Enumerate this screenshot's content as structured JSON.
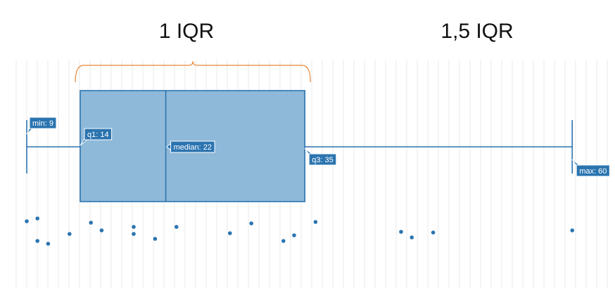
{
  "headers": {
    "iqr": "1 IQR",
    "whisker": "1,5 IQR"
  },
  "chart_data": {
    "type": "boxplot",
    "title": "",
    "xlabel": "",
    "ylabel": "",
    "grid": true,
    "stats": {
      "min": 9,
      "q1": 14,
      "median": 22,
      "q3": 35,
      "max": 60
    },
    "labels": {
      "min": "min: 9",
      "q1": "q1: 14",
      "median": "median: 22",
      "q3": "q3: 35",
      "max": "max: 60"
    },
    "points": [
      9,
      10,
      10,
      11,
      13,
      15,
      16,
      19,
      19,
      21,
      23,
      28,
      30,
      33,
      34,
      36,
      44,
      45,
      47,
      60
    ]
  },
  "colors": {
    "box_fill": "#8fb9d9",
    "box_stroke": "#2b74b0",
    "whisker": "#2b74b0",
    "point": "#2b74b0",
    "label_bg": "#2b74b0",
    "brace": "#e8883a",
    "grid": "#e8e8e8"
  }
}
